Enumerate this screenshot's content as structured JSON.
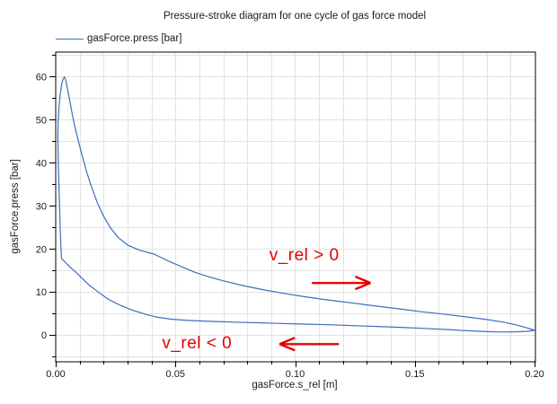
{
  "title": "Pressure-stroke diagram for one cycle of gas force model",
  "legend": {
    "label": "gasForce.press [bar]"
  },
  "colors": {
    "curve": "#3a6fbf",
    "annotation": "#e60000",
    "grid": "#e2e2e2",
    "axis": "#000000",
    "tick_text": "#1a1a1a",
    "background": "#ffffff"
  },
  "annotations": [
    {
      "text": "v_rel > 0",
      "text_s": 0.0892,
      "text_p_top": 20.6,
      "arrow": {
        "dir": "right",
        "s1": 0.107,
        "s2": 0.1315,
        "p": 12.1
      }
    },
    {
      "text": "v_rel < 0",
      "text_s": 0.0444,
      "text_p_top": 0.3,
      "arrow": {
        "dir": "left",
        "s1": 0.0935,
        "s2": 0.1183,
        "p": -2.1
      }
    }
  ],
  "chart_data": {
    "type": "line",
    "title": "Pressure-stroke diagram for one cycle of gas force model",
    "xlabel": "gasForce.s_rel [m]",
    "ylabel": "gasForce.press [bar]",
    "xlim": [
      0,
      0.2
    ],
    "ylim": [
      -6,
      65.7
    ],
    "grid": true,
    "legend_position": "top-left",
    "x_ticks": {
      "major": [
        0,
        0.05,
        0.1,
        0.15,
        0.2
      ],
      "major_labels": [
        "0.00",
        "0.05",
        "0.10",
        "0.15",
        "0.20"
      ],
      "minor_step": 0.01
    },
    "y_ticks": {
      "major": [
        0,
        10,
        20,
        30,
        40,
        50,
        60
      ],
      "major_labels": [
        "0",
        "10",
        "20",
        "30",
        "40",
        "50",
        "60"
      ],
      "minor_step": 5
    },
    "series": [
      {
        "name": "gasForce.press [bar]",
        "color": "#3a6fbf",
        "closed_loop": true,
        "points": [
          [
            0.0024,
            17.8
          ],
          [
            0.0019,
            24.0
          ],
          [
            0.0015,
            32.0
          ],
          [
            0.0011,
            40.0
          ],
          [
            0.0009,
            46.0
          ],
          [
            0.001,
            49.5
          ],
          [
            0.0014,
            53.0
          ],
          [
            0.0019,
            56.0
          ],
          [
            0.0025,
            58.3
          ],
          [
            0.0031,
            59.5
          ],
          [
            0.0037,
            59.9
          ],
          [
            0.0043,
            58.9
          ],
          [
            0.005,
            57.0
          ],
          [
            0.006,
            54.0
          ],
          [
            0.007,
            51.0
          ],
          [
            0.008,
            48.4
          ],
          [
            0.0095,
            45.0
          ],
          [
            0.011,
            41.8
          ],
          [
            0.013,
            37.8
          ],
          [
            0.015,
            34.3
          ],
          [
            0.0175,
            30.6
          ],
          [
            0.02,
            27.6
          ],
          [
            0.023,
            24.8
          ],
          [
            0.026,
            22.7
          ],
          [
            0.03,
            20.9
          ],
          [
            0.035,
            19.7
          ],
          [
            0.041,
            18.8
          ],
          [
            0.047,
            17.2
          ],
          [
            0.052,
            16.0
          ],
          [
            0.058,
            14.6
          ],
          [
            0.064,
            13.5
          ],
          [
            0.07,
            12.6
          ],
          [
            0.078,
            11.5
          ],
          [
            0.086,
            10.6
          ],
          [
            0.095,
            9.7
          ],
          [
            0.104,
            8.9
          ],
          [
            0.113,
            8.2
          ],
          [
            0.123,
            7.5
          ],
          [
            0.133,
            6.8
          ],
          [
            0.143,
            6.1
          ],
          [
            0.153,
            5.4
          ],
          [
            0.163,
            4.8
          ],
          [
            0.172,
            4.2
          ],
          [
            0.18,
            3.6
          ],
          [
            0.187,
            3.0
          ],
          [
            0.192,
            2.4
          ],
          [
            0.196,
            1.8
          ],
          [
            0.199,
            1.3
          ],
          [
            0.2,
            1.1
          ],
          [
            0.197,
            0.85
          ],
          [
            0.192,
            0.75
          ],
          [
            0.186,
            0.72
          ],
          [
            0.18,
            0.8
          ],
          [
            0.172,
            1.0
          ],
          [
            0.163,
            1.3
          ],
          [
            0.154,
            1.55
          ],
          [
            0.144,
            1.8
          ],
          [
            0.134,
            2.0
          ],
          [
            0.124,
            2.2
          ],
          [
            0.114,
            2.4
          ],
          [
            0.104,
            2.55
          ],
          [
            0.094,
            2.7
          ],
          [
            0.084,
            2.85
          ],
          [
            0.074,
            3.0
          ],
          [
            0.064,
            3.2
          ],
          [
            0.055,
            3.4
          ],
          [
            0.048,
            3.7
          ],
          [
            0.042,
            4.2
          ],
          [
            0.037,
            4.9
          ],
          [
            0.032,
            5.8
          ],
          [
            0.027,
            6.9
          ],
          [
            0.022,
            8.3
          ],
          [
            0.018,
            9.9
          ],
          [
            0.014,
            11.6
          ],
          [
            0.011,
            13.2
          ],
          [
            0.008,
            14.8
          ],
          [
            0.006,
            15.8
          ],
          [
            0.0045,
            16.6
          ],
          [
            0.0033,
            17.3
          ],
          [
            0.0024,
            17.8
          ]
        ]
      }
    ]
  }
}
